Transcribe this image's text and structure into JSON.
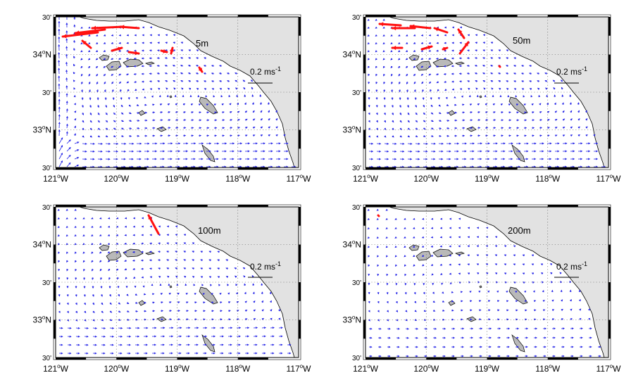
{
  "panels": [
    {
      "id": "5m",
      "depth_label": "5m",
      "scale_label": "0.2 ms",
      "scale_exp": "-1"
    },
    {
      "id": "50m",
      "depth_label": "50m",
      "scale_label": "0.2 ms",
      "scale_exp": "-1"
    },
    {
      "id": "100m",
      "depth_label": "100m",
      "scale_label": "0.2 ms",
      "scale_exp": "-1"
    },
    {
      "id": "200m",
      "depth_label": "200m",
      "scale_label": "0.2 ms",
      "scale_exp": "-1"
    }
  ],
  "axes": {
    "x_ticks": [
      {
        "deg": "121",
        "unit": "W"
      },
      {
        "deg": "120",
        "unit": "W"
      },
      {
        "deg": "119",
        "unit": "W"
      },
      {
        "deg": "118",
        "unit": "W"
      },
      {
        "deg": "117",
        "unit": "W"
      }
    ],
    "y_ticks": [
      {
        "kind": "min",
        "text": "30'"
      },
      {
        "kind": "deg",
        "deg": "34",
        "unit": "N"
      },
      {
        "kind": "min",
        "text": "30'"
      },
      {
        "kind": "deg",
        "deg": "33",
        "unit": "N"
      },
      {
        "kind": "min",
        "text": "30'"
      }
    ],
    "degree_symbol": "o"
  },
  "colors": {
    "land": "#e2e2e2",
    "island": "#b9b9b9",
    "ocean": "#ffffff",
    "vector_normal": "#1f1fe6",
    "vector_strong": "#ff1010",
    "coastline": "#000000",
    "grid": "#555555"
  }
}
